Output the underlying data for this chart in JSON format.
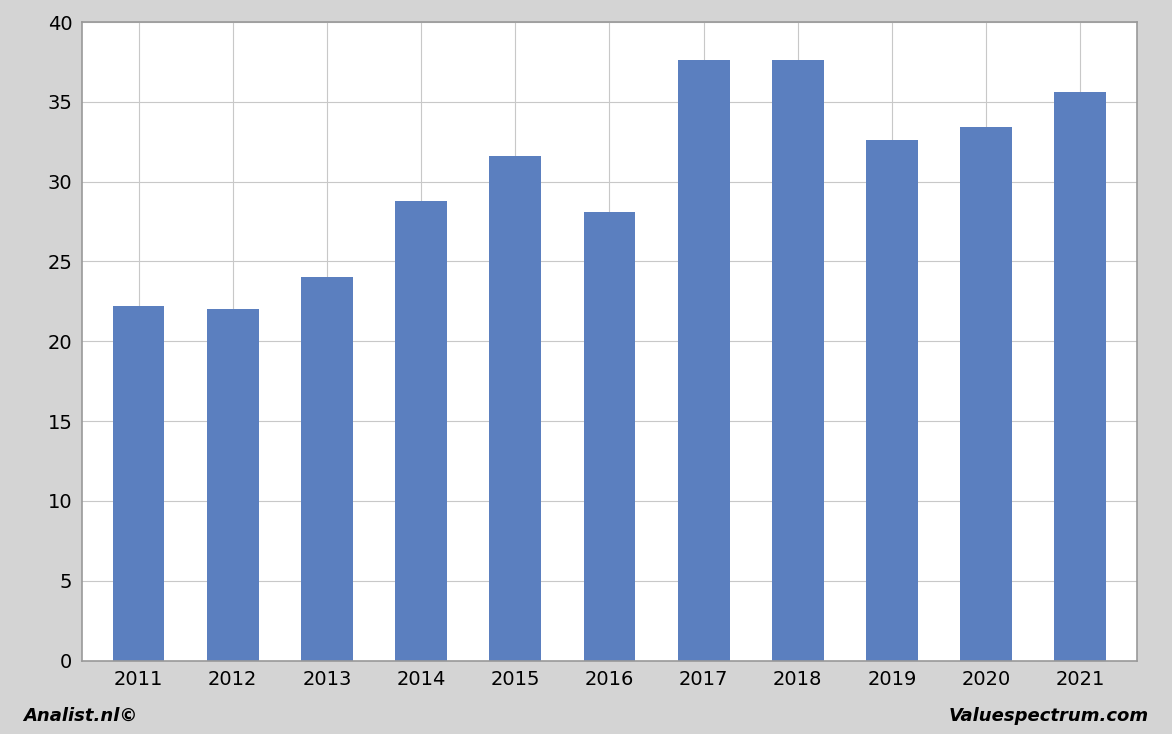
{
  "years": [
    2011,
    2012,
    2013,
    2014,
    2015,
    2016,
    2017,
    2018,
    2019,
    2020,
    2021
  ],
  "values": [
    22.2,
    22.0,
    24.0,
    28.8,
    31.6,
    28.1,
    37.6,
    37.6,
    32.6,
    33.4,
    35.6
  ],
  "bar_color": "#5b7fbf",
  "figure_background_color": "#d4d4d4",
  "plot_background": "#ffffff",
  "ylim": [
    0,
    40
  ],
  "yticks": [
    0,
    5,
    10,
    15,
    20,
    25,
    30,
    35,
    40
  ],
  "grid_color": "#c8c8c8",
  "bar_width": 0.55,
  "tick_fontsize": 14,
  "footer_left": "Analist.nl©",
  "footer_right": "Valuespectrum.com",
  "footer_fontsize": 13,
  "border_color": "#999999"
}
